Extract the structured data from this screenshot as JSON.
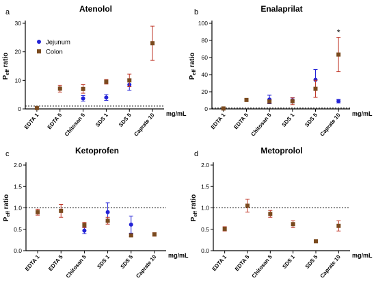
{
  "colors": {
    "jejunum": "#2323d6",
    "colon": "#7a4a1e",
    "error": "#c0392b",
    "axis": "#000000"
  },
  "legend": {
    "jejunum": "Jejunum",
    "colon": "Colon"
  },
  "unit_label": "mg/mL",
  "ylabel": {
    "main": "P",
    "sub": "eff",
    "rest": " ratio"
  },
  "chart_data": [
    {
      "type": "scatter",
      "letter": "a",
      "title": "Atenolol",
      "categories": [
        "EDTA 1",
        "EDTA 5",
        "Chitosan 5",
        "SDS 1",
        "SDS 5",
        "Caprate 10"
      ],
      "ylim": [
        0,
        30
      ],
      "yticks": [
        0,
        10,
        20,
        30
      ],
      "reference_line": 1,
      "legend_shown": true,
      "series": [
        {
          "name": "Jejunum",
          "values": [
            null,
            null,
            3.7,
            4.0,
            8.5,
            null
          ],
          "errors": [
            null,
            null,
            1.0,
            1.0,
            2.0,
            null
          ]
        },
        {
          "name": "Colon",
          "values": [
            0.3,
            7.1,
            7.0,
            9.5,
            10.0,
            23.0
          ],
          "errors": [
            0.2,
            1.2,
            1.5,
            0.8,
            2.2,
            6.0
          ]
        }
      ]
    },
    {
      "type": "scatter",
      "letter": "b",
      "title": "Enalaprilat",
      "categories": [
        "EDTA 1",
        "EDTA 5",
        "Chitosan 5",
        "SDS 1",
        "SDS 5",
        "Caprate 10"
      ],
      "ylim": [
        0,
        100
      ],
      "yticks": [
        0,
        20,
        40,
        60,
        80,
        100
      ],
      "reference_line": 1,
      "annotation": {
        "text": "*",
        "category": "Caprate 10"
      },
      "series": [
        {
          "name": "Jejunum",
          "values": [
            null,
            null,
            11.0,
            10.0,
            34.0,
            9.0
          ],
          "errors": [
            null,
            null,
            5.0,
            3.0,
            12.0,
            2.0
          ]
        },
        {
          "name": "Colon",
          "values": [
            0.5,
            10.5,
            8.5,
            9.0,
            23.5,
            63.5
          ],
          "errors": [
            0.3,
            1.0,
            2.0,
            4.0,
            10.0,
            20.0
          ]
        }
      ]
    },
    {
      "type": "scatter",
      "letter": "c",
      "title": "Ketoprofen",
      "categories": [
        "EDTA 1",
        "EDTA 5",
        "Chitosan 5",
        "SDS 1",
        "SDS 5",
        "Caprate 10"
      ],
      "ylim": [
        0,
        2.0
      ],
      "yticks": [
        0.0,
        0.5,
        1.0,
        1.5,
        2.0
      ],
      "reference_line": 1,
      "series": [
        {
          "name": "Jejunum",
          "values": [
            null,
            null,
            0.47,
            0.9,
            0.61,
            null
          ],
          "errors": [
            null,
            null,
            0.07,
            0.22,
            0.2,
            null
          ]
        },
        {
          "name": "Colon",
          "values": [
            0.9,
            0.93,
            0.6,
            0.7,
            0.36,
            0.38
          ],
          "errors": [
            0.07,
            0.15,
            0.06,
            0.08,
            0.03,
            0.04
          ]
        }
      ]
    },
    {
      "type": "scatter",
      "letter": "d",
      "title": "Metoprolol",
      "categories": [
        "EDTA 1",
        "EDTA 5",
        "Chitosan 5",
        "SDS 1",
        "SDS 5",
        "Caprate 10"
      ],
      "ylim": [
        0,
        2.0
      ],
      "yticks": [
        0.0,
        0.5,
        1.0,
        1.5,
        2.0
      ],
      "reference_line": 1,
      "series": [
        {
          "name": "Colon",
          "values": [
            0.51,
            1.05,
            0.86,
            0.62,
            0.22,
            0.58
          ],
          "errors": [
            0.05,
            0.15,
            0.08,
            0.08,
            0.02,
            0.12
          ]
        }
      ]
    }
  ]
}
